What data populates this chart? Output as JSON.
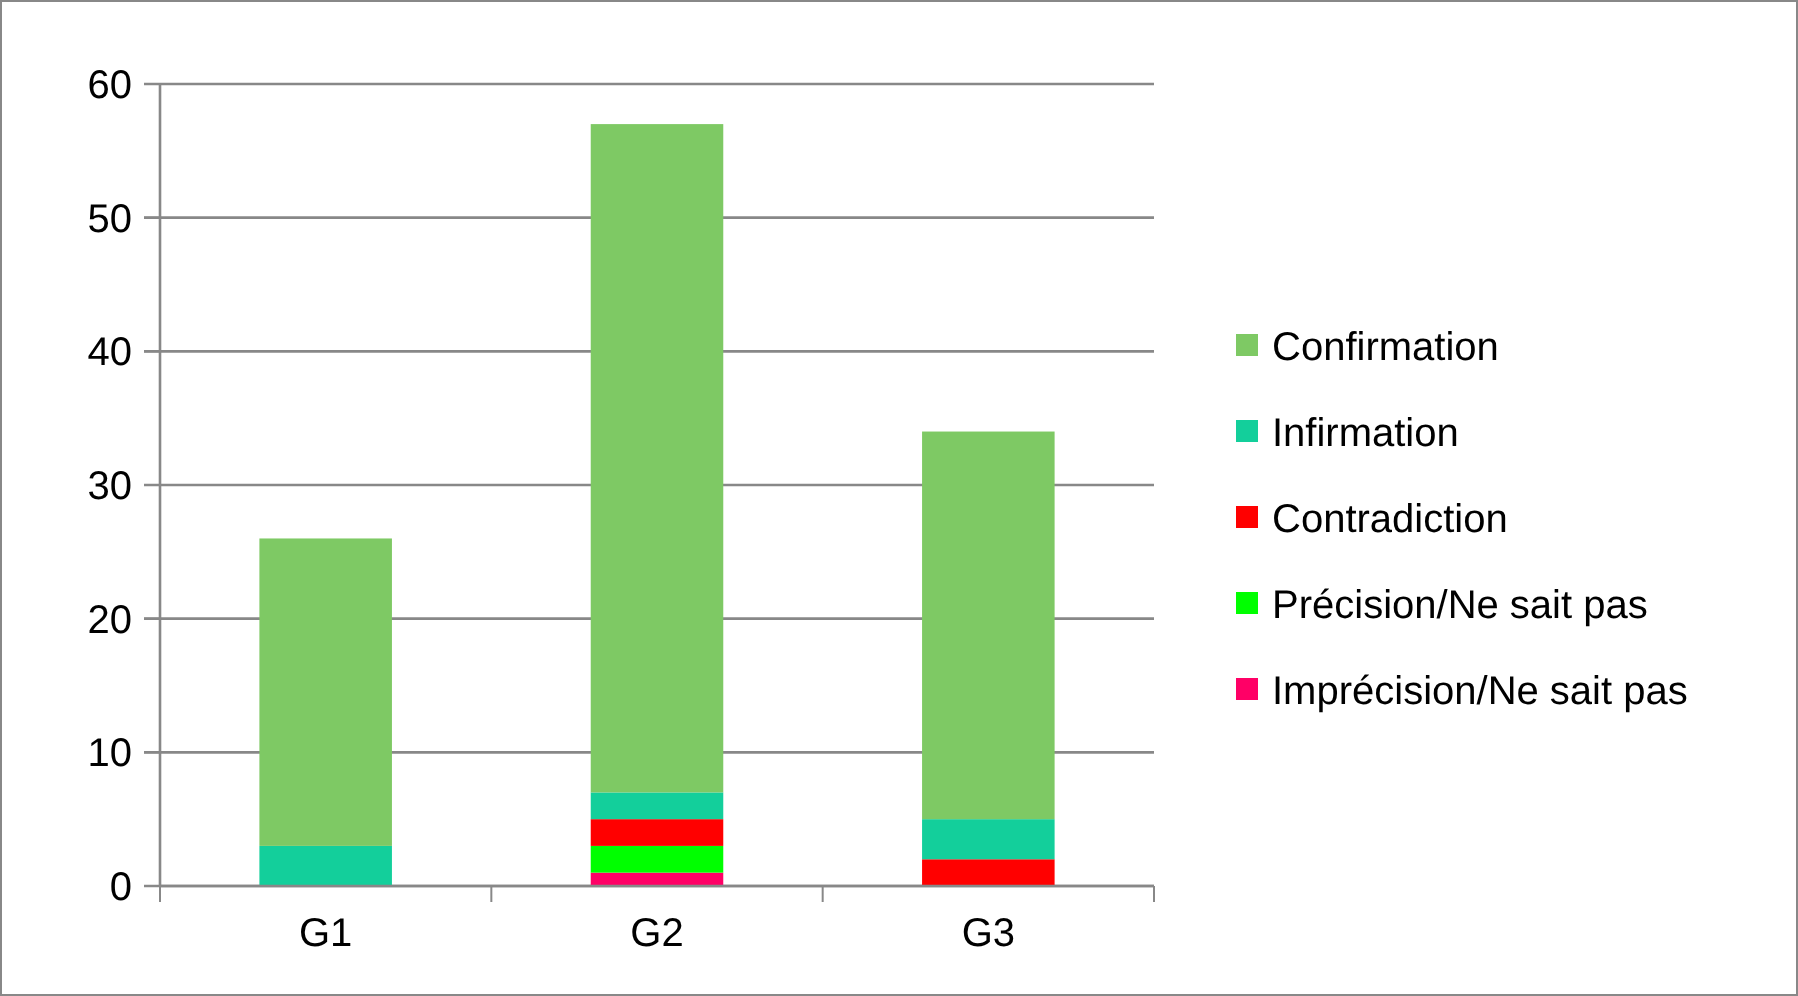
{
  "chart_data": {
    "type": "bar",
    "stacked": true,
    "categories": [
      "G1",
      "G2",
      "G3"
    ],
    "series": [
      {
        "name": "Imprécision/Ne sait pas",
        "color": "#ff0066",
        "values": [
          0,
          1,
          0
        ]
      },
      {
        "name": "Précision/Ne sait pas",
        "color": "#00ff00",
        "values": [
          0,
          2,
          0
        ]
      },
      {
        "name": "Contradiction",
        "color": "#ff0000",
        "values": [
          0,
          2,
          2
        ]
      },
      {
        "name": "Infirmation",
        "color": "#13cf9b",
        "values": [
          3,
          2,
          3
        ]
      },
      {
        "name": "Confirmation",
        "color": "#7ec964",
        "values": [
          23,
          50,
          29
        ]
      }
    ],
    "ylim": [
      0,
      60
    ],
    "yticks": [
      0,
      10,
      20,
      30,
      40,
      50,
      60
    ],
    "grid": "y",
    "legend": "right"
  }
}
